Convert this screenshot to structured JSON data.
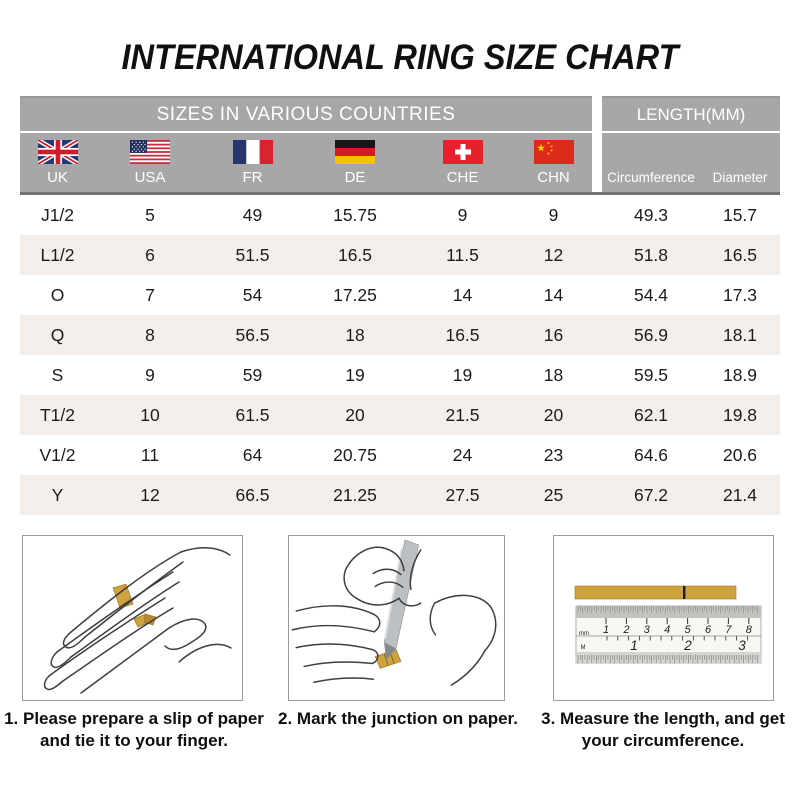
{
  "title": "INTERNATIONAL RING SIZE CHART",
  "table": {
    "group_headers": {
      "left": "SIZES IN VARIOUS COUNTRIES",
      "right": "LENGTH(MM)"
    },
    "countries": [
      {
        "code": "UK"
      },
      {
        "code": "USA"
      },
      {
        "code": "FR"
      },
      {
        "code": "DE"
      },
      {
        "code": "CHE"
      },
      {
        "code": "CHN"
      }
    ],
    "length_columns": [
      "Circumference",
      "Diameter"
    ],
    "rows": [
      [
        "J1/2",
        "5",
        "49",
        "15.75",
        "9",
        "9",
        "49.3",
        "15.7"
      ],
      [
        "L1/2",
        "6",
        "51.5",
        "16.5",
        "11.5",
        "12",
        "51.8",
        "16.5"
      ],
      [
        "O",
        "7",
        "54",
        "17.25",
        "14",
        "14",
        "54.4",
        "17.3"
      ],
      [
        "Q",
        "8",
        "56.5",
        "18",
        "16.5",
        "16",
        "56.9",
        "18.1"
      ],
      [
        "S",
        "9",
        "59",
        "19",
        "19",
        "18",
        "59.5",
        "18.9"
      ],
      [
        "T1/2",
        "10",
        "61.5",
        "20",
        "21.5",
        "20",
        "62.1",
        "19.8"
      ],
      [
        "V1/2",
        "11",
        "64",
        "20.75",
        "24",
        "23",
        "64.6",
        "20.6"
      ],
      [
        "Y",
        "12",
        "66.5",
        "21.25",
        "27.5",
        "25",
        "67.2",
        "21.4"
      ]
    ]
  },
  "steps": [
    {
      "caption": "1. Please prepare a slip of paper and tie it to your finger."
    },
    {
      "caption": "2. Mark the junction on paper."
    },
    {
      "caption": "3. Measure the length, and get your circumference."
    }
  ],
  "ruler": {
    "cm_numbers": [
      "1",
      "2",
      "3",
      "4",
      "5",
      "6",
      "7",
      "8"
    ],
    "inch_numbers": [
      "1",
      "2",
      "3"
    ],
    "unit_top": "mm",
    "unit_bottom": "M"
  },
  "colors": {
    "header_gray": "#a7a7a9",
    "header_border": "#747477",
    "row_alt_beige": "#f4efea",
    "paper_gold": "#cea23f",
    "text_dark": "#1c1c1c",
    "header_text": "#ffffff"
  }
}
